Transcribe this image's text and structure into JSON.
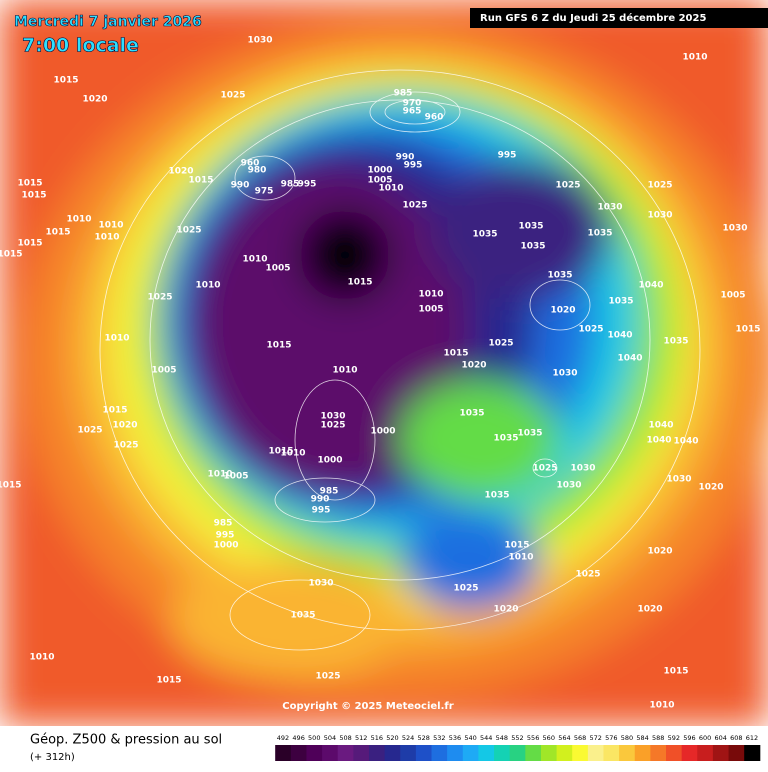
{
  "header": {
    "date": "Mercredi 7 janvier 2026",
    "time": "7:00 locale",
    "run": "Run GFS 6 Z du Jeudi 25 décembre 2025"
  },
  "copyright": "Copyright © 2025 Meteociel.fr",
  "footer": {
    "title": "Géop. Z500 & pression au sol",
    "lead": "(+ 312h)"
  },
  "colorbar": {
    "ticks": [
      492,
      496,
      500,
      504,
      508,
      512,
      516,
      520,
      524,
      528,
      532,
      536,
      540,
      544,
      548,
      552,
      556,
      560,
      564,
      568,
      572,
      576,
      580,
      584,
      588,
      592,
      596,
      600,
      604,
      608,
      612
    ],
    "colors": [
      "#2a0028",
      "#3d0040",
      "#4f0059",
      "#5c0a6b",
      "#6a1a80",
      "#561a7a",
      "#3a2080",
      "#26288f",
      "#1e3ca8",
      "#1e50c8",
      "#1e6ee0",
      "#1e8cf0",
      "#1eaaf5",
      "#14c8e6",
      "#14d2b4",
      "#28d282",
      "#64dc46",
      "#a0e628",
      "#d2f01e",
      "#fafa32",
      "#faf08c",
      "#fae664",
      "#fac83c",
      "#faa028",
      "#f57828",
      "#f05028",
      "#e62828",
      "#c81e1e",
      "#a01414",
      "#780a0a",
      "#000000"
    ]
  },
  "pressure_labels": [
    1030,
    1010,
    1015,
    1020,
    1025,
    985,
    970,
    965,
    960,
    995,
    990,
    995,
    960,
    980,
    990,
    975,
    985,
    995,
    1020,
    1015,
    1000,
    1005,
    1010,
    1025,
    1025,
    1025,
    1015,
    1015,
    1010,
    1010,
    1010,
    1015,
    1025,
    1015,
    1015,
    1030,
    1030,
    1030,
    1035,
    1035,
    1035,
    1035,
    1010,
    1005,
    1010,
    1015,
    1035,
    1040,
    1025,
    1010,
    1005,
    1020,
    1025,
    1035,
    1040,
    1005,
    1035,
    1015,
    1010,
    1015,
    1025,
    1015,
    1020,
    1040,
    1030,
    1005,
    1010,
    1015,
    1020,
    1025,
    1025,
    1030,
    1025,
    1000,
    1035,
    1035,
    1035,
    1040,
    1040,
    1040,
    1015,
    1010,
    1000,
    1025,
    1030,
    1030,
    1030,
    1020,
    1010,
    1005,
    985,
    990,
    995,
    1035,
    1015,
    985,
    995,
    1000,
    1015,
    1010,
    1020,
    1025,
    1030,
    1025,
    1020,
    1020,
    1035,
    1010,
    1015,
    1025,
    1015,
    1010
  ]
}
